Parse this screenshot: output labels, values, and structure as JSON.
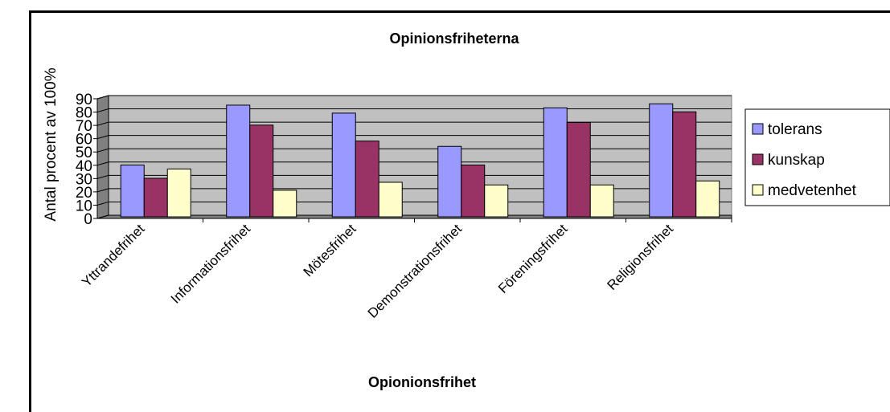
{
  "chart_data": {
    "type": "bar",
    "title": "Opinionsfriheterna",
    "xlabel": "Opionionsfrihet",
    "ylabel": "Antal procent av 100%",
    "ylim": [
      0,
      90
    ],
    "yticks": [
      "0",
      "10",
      "20",
      "30",
      "40",
      "50",
      "60",
      "70",
      "80",
      "90"
    ],
    "categories": [
      "Yttrandefrihet",
      "Informationsfrihet",
      "Mötesfrihet",
      "Demonstrationsfrihet",
      "Föreningsfrihet",
      "Religionsfrihet"
    ],
    "series": [
      {
        "name": "tolerans",
        "color": "#9999ff",
        "values": [
          39,
          84,
          78,
          53,
          82,
          85
        ]
      },
      {
        "name": "kunskap",
        "color": "#993366",
        "values": [
          29,
          69,
          57,
          39,
          71,
          79
        ]
      },
      {
        "name": "medvetenhet",
        "color": "#ffffcc",
        "values": [
          36,
          20,
          26,
          24,
          24,
          27
        ]
      }
    ],
    "plot_background": "#c0c0c0",
    "grid": true,
    "legend_position": "right"
  }
}
